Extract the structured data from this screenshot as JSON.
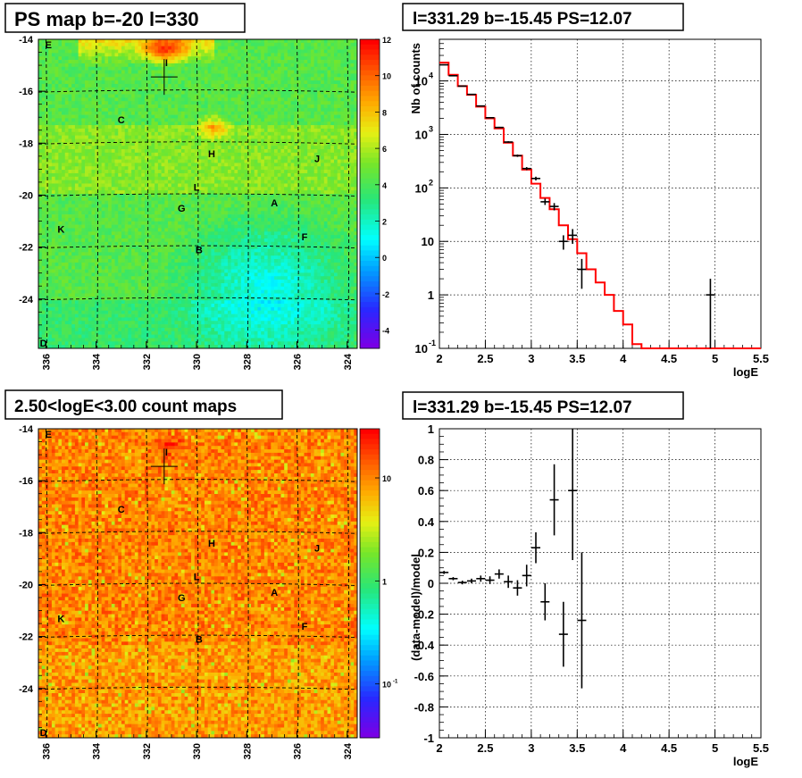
{
  "panels": {
    "map_top_title": "PS map b=-20 l=330",
    "spec_title": "l=331.29 b=-15.45 PS=12.07",
    "map_bottom_title": "2.50<logE<3.00 count maps",
    "resid_title": "l=331.29 b=-15.45 PS=12.07"
  },
  "colors": {
    "model": "#ff0000",
    "data": "#000000",
    "grid": "#000000",
    "frame": "#000000"
  },
  "chart_data": [
    {
      "type": "heatmap",
      "title": "PS map b=-20 l=330",
      "x_ticks": [
        "336",
        "334",
        "332",
        "330",
        "328",
        "326",
        "324"
      ],
      "y_ticks": [
        "-14",
        "-16",
        "-18",
        "-20",
        "-22",
        "-24"
      ],
      "xlim": [
        336.3,
        323.6
      ],
      "ylim": [
        -25.9,
        -14
      ],
      "colorbar": {
        "scale": "linear",
        "range": [
          -5,
          12
        ],
        "ticks": [
          "12",
          "10",
          "8",
          "6",
          "4",
          "2",
          "0",
          "-2",
          "-4"
        ]
      },
      "source_labels": [
        {
          "text": "E",
          "l": 335.9,
          "b": -14.2
        },
        {
          "text": "I",
          "l": 331.2,
          "b": -14.9
        },
        {
          "text": "C",
          "l": 333.0,
          "b": -17.1
        },
        {
          "text": "H",
          "l": 329.4,
          "b": -18.4
        },
        {
          "text": "J",
          "l": 325.2,
          "b": -18.6
        },
        {
          "text": "L",
          "l": 330.0,
          "b": -19.7
        },
        {
          "text": "A",
          "l": 326.9,
          "b": -20.3
        },
        {
          "text": "G",
          "l": 330.6,
          "b": -20.5
        },
        {
          "text": "K",
          "l": 335.4,
          "b": -21.3
        },
        {
          "text": "F",
          "l": 325.7,
          "b": -21.6
        },
        {
          "text": "B",
          "l": 329.9,
          "b": -22.1
        },
        {
          "text": "D",
          "l": 336.1,
          "b": -25.7
        }
      ],
      "marker": {
        "l": 331.29,
        "b": -15.45
      }
    },
    {
      "type": "heatmap",
      "title": "2.50<logE<3.00 count maps",
      "x_ticks": [
        "336",
        "334",
        "332",
        "330",
        "328",
        "326",
        "324"
      ],
      "y_ticks": [
        "-14",
        "-16",
        "-18",
        "-20",
        "-22",
        "-24"
      ],
      "xlim": [
        336.3,
        323.6
      ],
      "ylim": [
        -25.9,
        -14
      ],
      "colorbar": {
        "scale": "log",
        "range": [
          0.03,
          30
        ],
        "ticks": [
          "10",
          "1",
          "10^-1"
        ]
      },
      "source_labels": [
        {
          "text": "E",
          "l": 335.9,
          "b": -14.2
        },
        {
          "text": "I",
          "l": 331.2,
          "b": -14.9
        },
        {
          "text": "C",
          "l": 333.0,
          "b": -17.1
        },
        {
          "text": "H",
          "l": 329.4,
          "b": -18.4
        },
        {
          "text": "J",
          "l": 325.2,
          "b": -18.6
        },
        {
          "text": "L",
          "l": 330.0,
          "b": -19.7
        },
        {
          "text": "A",
          "l": 326.9,
          "b": -20.3
        },
        {
          "text": "G",
          "l": 330.6,
          "b": -20.5
        },
        {
          "text": "K",
          "l": 335.4,
          "b": -21.3
        },
        {
          "text": "F",
          "l": 325.7,
          "b": -21.6
        },
        {
          "text": "B",
          "l": 329.9,
          "b": -22.1
        },
        {
          "text": "D",
          "l": 336.1,
          "b": -25.7
        }
      ],
      "marker": {
        "l": 331.29,
        "b": -15.45
      }
    },
    {
      "type": "line",
      "title": "l=331.29 b=-15.45 PS=12.07",
      "xlabel": "logE",
      "ylabel": "Nb of counts",
      "xlim": [
        2,
        5.5
      ],
      "ylim": [
        0.1,
        60000
      ],
      "yscale": "log",
      "x_ticks": [
        "2",
        "2.5",
        "3",
        "3.5",
        "4",
        "4.5",
        "5",
        "5.5"
      ],
      "y_ticks": [
        "10^-1",
        "1",
        "10",
        "10^2",
        "10^3",
        "10^4"
      ],
      "grid": true,
      "series": [
        {
          "style": "step",
          "bin_edges": [
            2,
            2.1,
            2.2,
            2.3,
            2.4,
            2.5,
            2.6,
            2.7,
            2.8,
            2.9,
            3.0,
            3.1,
            3.2,
            3.3,
            3.4,
            3.5,
            3.6,
            3.7,
            3.8,
            3.9,
            4.0,
            4.1,
            4.2,
            4.3,
            4.4,
            4.5,
            4.6,
            4.7,
            4.8,
            4.9,
            5.0,
            5.1,
            5.2,
            5.3,
            5.4,
            5.5
          ],
          "values": [
            22000,
            13000,
            8000,
            5500,
            3300,
            2000,
            1300,
            700,
            400,
            220,
            120,
            65,
            40,
            20,
            11,
            6,
            3,
            1.7,
            1.0,
            0.5,
            0.28,
            0.12,
            0.1,
            0.1,
            0.1,
            0.1,
            0.1,
            0.1,
            0.1,
            0.1,
            0.1,
            0.1,
            0.1,
            0.1,
            0.1
          ]
        },
        {
          "style": "errorbar",
          "points": [
            {
              "x": 2.05,
              "y": 20000,
              "lo": 19800,
              "hi": 20200
            },
            {
              "x": 2.15,
              "y": 12500,
              "lo": 12400,
              "hi": 12600
            },
            {
              "x": 2.25,
              "y": 8000,
              "lo": 7900,
              "hi": 8100
            },
            {
              "x": 2.35,
              "y": 5600,
              "lo": 5500,
              "hi": 5700
            },
            {
              "x": 2.45,
              "y": 3400,
              "lo": 3340,
              "hi": 3460
            },
            {
              "x": 2.55,
              "y": 2050,
              "lo": 2000,
              "hi": 2100
            },
            {
              "x": 2.65,
              "y": 1350,
              "lo": 1310,
              "hi": 1390
            },
            {
              "x": 2.75,
              "y": 720,
              "lo": 700,
              "hi": 745
            },
            {
              "x": 2.85,
              "y": 400,
              "lo": 380,
              "hi": 420
            },
            {
              "x": 2.95,
              "y": 230,
              "lo": 215,
              "hi": 245
            },
            {
              "x": 3.05,
              "y": 150,
              "lo": 138,
              "hi": 162
            },
            {
              "x": 3.15,
              "y": 55,
              "lo": 48,
              "hi": 63
            },
            {
              "x": 3.25,
              "y": 45,
              "lo": 38,
              "hi": 52
            },
            {
              "x": 3.35,
              "y": 10,
              "lo": 7,
              "hi": 13
            },
            {
              "x": 3.45,
              "y": 13,
              "lo": 9,
              "hi": 17
            },
            {
              "x": 3.55,
              "y": 3,
              "lo": 1.3,
              "hi": 4.7
            },
            {
              "x": 4.95,
              "y": 1,
              "lo": 0.1,
              "hi": 2
            }
          ]
        }
      ]
    },
    {
      "type": "scatter",
      "title": "l=331.29 b=-15.45 PS=12.07",
      "xlabel": "logE",
      "ylabel": "(data-model)/model",
      "xlim": [
        2,
        5.5
      ],
      "ylim": [
        -1,
        1
      ],
      "x_ticks": [
        "2",
        "2.5",
        "3",
        "3.5",
        "4",
        "4.5",
        "5",
        "5.5"
      ],
      "y_ticks": [
        "1",
        "0.8",
        "0.6",
        "0.4",
        "0.2",
        "0",
        "-0.2",
        "-0.4",
        "-0.6",
        "-0.8",
        "-1"
      ],
      "grid": true,
      "points": [
        {
          "x": 2.05,
          "y": 0.07,
          "err": 0.01
        },
        {
          "x": 2.15,
          "y": 0.03,
          "err": 0.01
        },
        {
          "x": 2.25,
          "y": 0.005,
          "err": 0.012
        },
        {
          "x": 2.35,
          "y": 0.015,
          "err": 0.015
        },
        {
          "x": 2.45,
          "y": 0.03,
          "err": 0.02
        },
        {
          "x": 2.55,
          "y": 0.02,
          "err": 0.025
        },
        {
          "x": 2.65,
          "y": 0.06,
          "err": 0.03
        },
        {
          "x": 2.75,
          "y": 0.01,
          "err": 0.04
        },
        {
          "x": 2.85,
          "y": -0.03,
          "err": 0.05
        },
        {
          "x": 2.95,
          "y": 0.05,
          "err": 0.07
        },
        {
          "x": 3.05,
          "y": 0.23,
          "err": 0.1
        },
        {
          "x": 3.15,
          "y": -0.12,
          "err": 0.12
        },
        {
          "x": 3.25,
          "y": 0.54,
          "err": 0.23
        },
        {
          "x": 3.35,
          "y": -0.33,
          "err": 0.21
        },
        {
          "x": 3.45,
          "y": 0.6,
          "err": 0.45
        },
        {
          "x": 3.55,
          "y": -0.24,
          "err": 0.44
        }
      ]
    }
  ]
}
